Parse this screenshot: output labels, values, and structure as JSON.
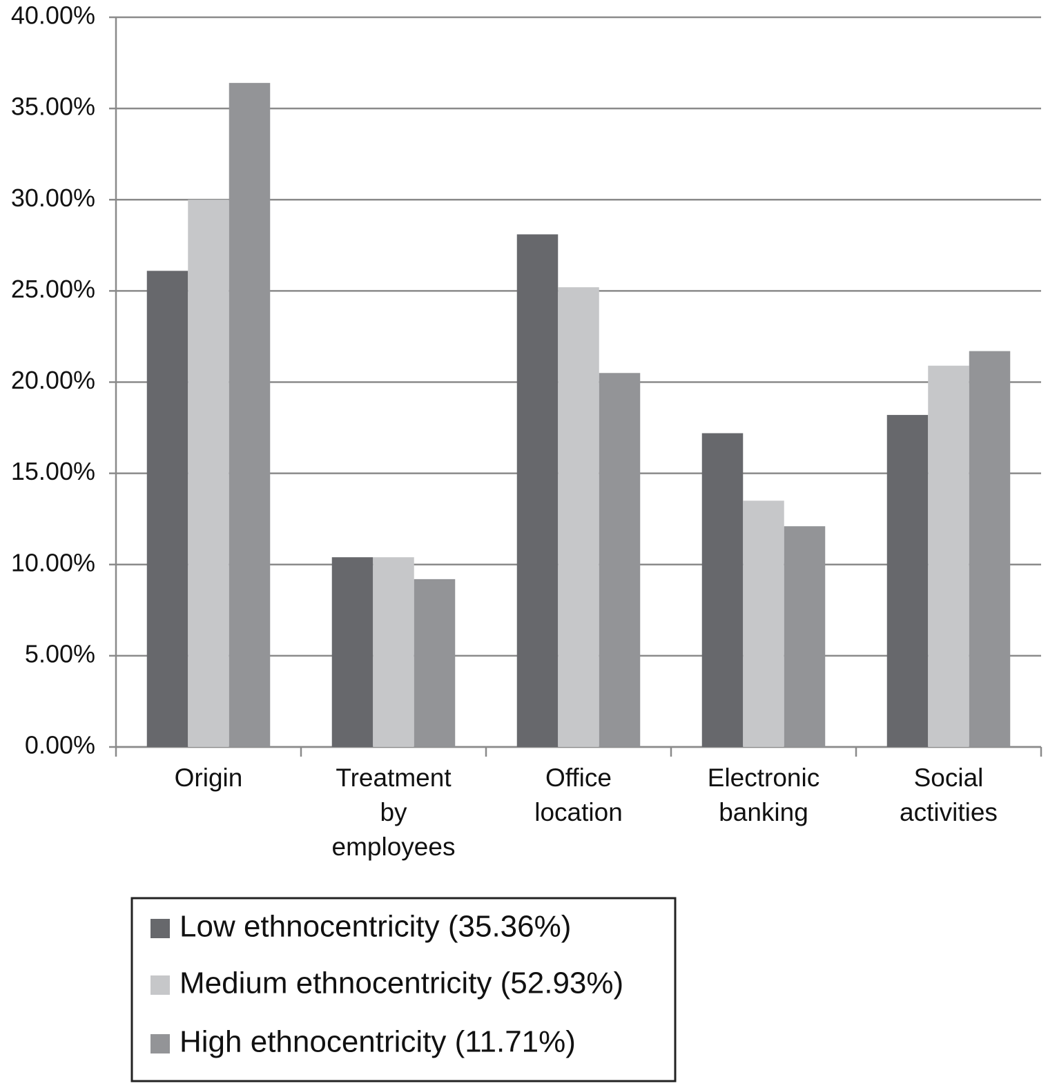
{
  "chart_data": {
    "type": "bar",
    "categories": [
      "Origin",
      "Treatment by employees",
      "Office location",
      "Electronic banking",
      "Social activities"
    ],
    "series": [
      {
        "name": "Low ethnocentricity (35.36%)",
        "color": "#67686c",
        "values": [
          26.1,
          10.4,
          28.1,
          17.2,
          18.2
        ]
      },
      {
        "name": "Medium ethnocentricity (52.93%)",
        "color": "#c6c7c9",
        "values": [
          30.0,
          10.4,
          25.2,
          13.5,
          20.9
        ]
      },
      {
        "name": "High ethnocentricity (11.71%)",
        "color": "#939497",
        "values": [
          36.4,
          9.2,
          20.5,
          12.1,
          21.7
        ]
      }
    ],
    "ylim": [
      0,
      40
    ],
    "yticks": [
      {
        "value": 0,
        "label": "0.00%"
      },
      {
        "value": 5,
        "label": "5.00%"
      },
      {
        "value": 10,
        "label": "10.00%"
      },
      {
        "value": 15,
        "label": "15.00%"
      },
      {
        "value": 20,
        "label": "20.00%"
      },
      {
        "value": 25,
        "label": "25.00%"
      },
      {
        "value": 30,
        "label": "30.00%"
      },
      {
        "value": 35,
        "label": "35.00%"
      },
      {
        "value": 40,
        "label": "40.00%"
      }
    ],
    "grid": true
  }
}
